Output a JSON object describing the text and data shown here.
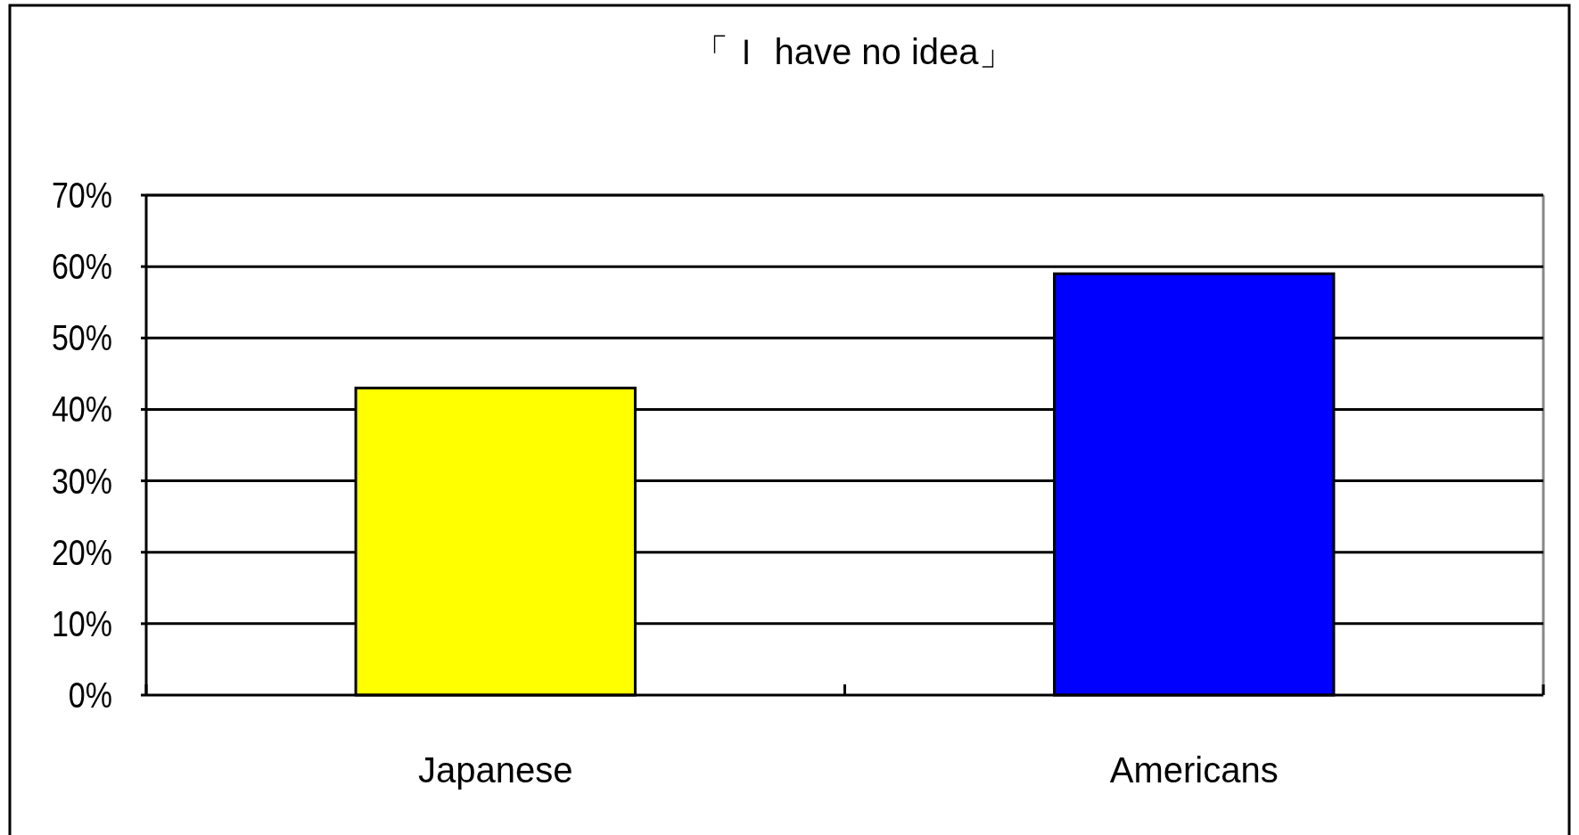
{
  "chart_data": {
    "type": "bar",
    "title": "「Ｉ have no idea」",
    "categories": [
      "Japanese",
      "Americans"
    ],
    "values": [
      43,
      59
    ],
    "colors": [
      "#ffff00",
      "#0000ff"
    ],
    "ylim": [
      0,
      70
    ],
    "yticks": [
      {
        "value": 0,
        "label": "0%"
      },
      {
        "value": 10,
        "label": "10%"
      },
      {
        "value": 20,
        "label": "20%"
      },
      {
        "value": 30,
        "label": "30%"
      },
      {
        "value": 40,
        "label": "40%"
      },
      {
        "value": 50,
        "label": "50%"
      },
      {
        "value": 60,
        "label": "60%"
      },
      {
        "value": 70,
        "label": "70%"
      }
    ],
    "grid": "y"
  }
}
